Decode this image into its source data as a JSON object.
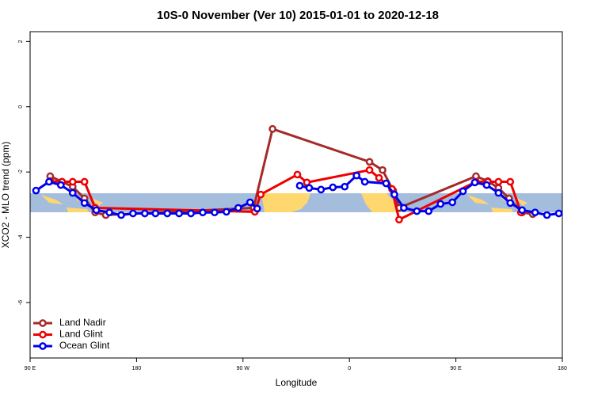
{
  "chart_data": {
    "type": "line",
    "title": "10S-0 November (Ver 10)   2015-01-01 to 2020-12-18",
    "xlabel": "Longitude",
    "ylabel": "XCO2 - MLO trend (ppm)",
    "xlim": [
      90,
      540
    ],
    "xticks": [
      {
        "value": 90,
        "label": "90 E"
      },
      180,
      {
        "value": 270,
        "label": "90 W"
      },
      {
        "value": 360,
        "label": "0"
      },
      {
        "value": 450,
        "label": "90 E"
      },
      {
        "value": 540,
        "label": "180"
      }
    ],
    "ylim": [
      -7.7,
      2.3
    ],
    "yticks": [
      -6,
      -4,
      -2,
      0,
      2
    ],
    "legend": "bottom-left",
    "series": [
      {
        "name": "Land Nadir",
        "color": "#a52a2a",
        "x": [
          107,
          117,
          126,
          136,
          145,
          154,
          279,
          295,
          377,
          388,
          397,
          402,
          467,
          477,
          486,
          495,
          506,
          515
        ],
        "values": [
          -2.13,
          -2.3,
          -2.45,
          -2.81,
          -3.24,
          -3.32,
          -3.1,
          -0.68,
          -1.69,
          -1.94,
          -2.57,
          -3.1,
          -2.13,
          -2.28,
          -2.49,
          -2.81,
          -3.24,
          -3.29
        ]
      },
      {
        "name": "Land Glint",
        "color": "#ee0000",
        "x": [
          107,
          117,
          126,
          136,
          145,
          280,
          285,
          316,
          324,
          377,
          385,
          396,
          402,
          467,
          477,
          486,
          496,
          505
        ],
        "values": [
          -2.28,
          -2.3,
          -2.3,
          -2.3,
          -3.1,
          -3.22,
          -2.69,
          -2.08,
          -2.32,
          -1.94,
          -2.18,
          -2.52,
          -3.46,
          -2.3,
          -2.3,
          -2.3,
          -2.3,
          -3.24
        ]
      },
      {
        "name": "Ocean Glint",
        "color": "#0000ee",
        "x": [
          95,
          106,
          116,
          126,
          136,
          146,
          157,
          167,
          177,
          187,
          196,
          206,
          216,
          226,
          236,
          246,
          256,
          266,
          276,
          282,
          300,
          318,
          326,
          336,
          346,
          356,
          366,
          373,
          391,
          398,
          406,
          417,
          427,
          437,
          447,
          456,
          466,
          476,
          486,
          496,
          506,
          517,
          527,
          537
        ],
        "values": [
          -2.57,
          -2.3,
          -2.4,
          -2.64,
          -2.95,
          -3.17,
          -3.24,
          -3.32,
          -3.27,
          -3.27,
          -3.27,
          -3.27,
          -3.27,
          -3.27,
          -3.24,
          -3.24,
          -3.22,
          -3.1,
          -2.93,
          -3.12,
          null,
          -2.42,
          -2.49,
          -2.54,
          -2.47,
          -2.45,
          -2.11,
          -2.3,
          -2.35,
          -2.69,
          -3.1,
          -3.2,
          -3.2,
          -2.98,
          -2.93,
          -2.59,
          -2.32,
          -2.4,
          -2.64,
          -2.95,
          -3.17,
          -3.24,
          -3.32,
          -3.27
        ]
      }
    ]
  }
}
